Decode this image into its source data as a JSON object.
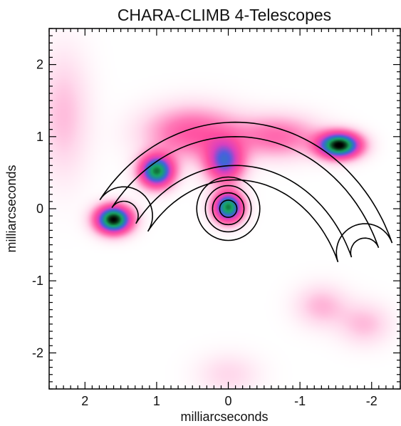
{
  "chart_data": {
    "type": "heatmap",
    "title": "CHARA-CLIMB 4-Telescopes",
    "xlabel": "milliarcseconds",
    "ylabel": "milliarcseconds",
    "xlim": [
      2.5,
      -2.4
    ],
    "ylim": [
      -2.5,
      2.5
    ],
    "x_direction": "reversed",
    "xticks": [
      2,
      1,
      0,
      -1,
      -2
    ],
    "xtick_labels": [
      "2",
      "1",
      "0",
      "-1",
      "-2"
    ],
    "yticks": [
      -2,
      -1,
      0,
      1,
      2
    ],
    "ytick_labels": [
      "-2",
      "-1",
      "0",
      "1",
      "2"
    ],
    "colormap": [
      "#ffffff",
      "#ffd9ec",
      "#ff7ab8",
      "#ff4fa0",
      "#d940c0",
      "#4a5fe0",
      "#1f8aa0",
      "#19a860",
      "#0a3a1a",
      "#000000"
    ],
    "grid": false,
    "legend": "none",
    "components": [
      {
        "x": 1.6,
        "y": -0.15,
        "sx": 0.17,
        "sy": 0.13,
        "peak": 1.0
      },
      {
        "x": 1.0,
        "y": 0.52,
        "sx": 0.16,
        "sy": 0.15,
        "peak": 0.85
      },
      {
        "x": 0.0,
        "y": 0.02,
        "sx": 0.14,
        "sy": 0.14,
        "peak": 0.85
      },
      {
        "x": -1.55,
        "y": 0.88,
        "sx": 0.2,
        "sy": 0.12,
        "peak": 1.0
      },
      {
        "x": 0.05,
        "y": 0.65,
        "sx": 0.18,
        "sy": 0.2,
        "peak": 0.55
      },
      {
        "x": 0.5,
        "y": 1.05,
        "sx": 0.45,
        "sy": 0.25,
        "peak": 0.3
      },
      {
        "x": -0.7,
        "y": 1.0,
        "sx": 0.4,
        "sy": 0.2,
        "peak": 0.25
      },
      {
        "x": -1.3,
        "y": -1.35,
        "sx": 0.25,
        "sy": 0.2,
        "peak": 0.13
      },
      {
        "x": -1.9,
        "y": -1.6,
        "sx": 0.25,
        "sy": 0.2,
        "peak": 0.12
      },
      {
        "x": 2.3,
        "y": 1.3,
        "sx": 0.25,
        "sy": 0.6,
        "peak": 0.12
      },
      {
        "x": 0.0,
        "y": -2.3,
        "sx": 0.3,
        "sy": 0.2,
        "peak": 0.08
      }
    ],
    "model_contours": {
      "arc": {
        "center": [
          -0.1,
          -1.45
        ],
        "rx": 1.95,
        "ry": 2.25,
        "start_deg": 143,
        "end_deg": 22,
        "half_widths": [
          0.2,
          0.4
        ]
      },
      "rings": {
        "center": [
          0.0,
          0.0
        ],
        "radii": [
          0.12,
          0.22,
          0.32,
          0.44
        ]
      }
    }
  }
}
